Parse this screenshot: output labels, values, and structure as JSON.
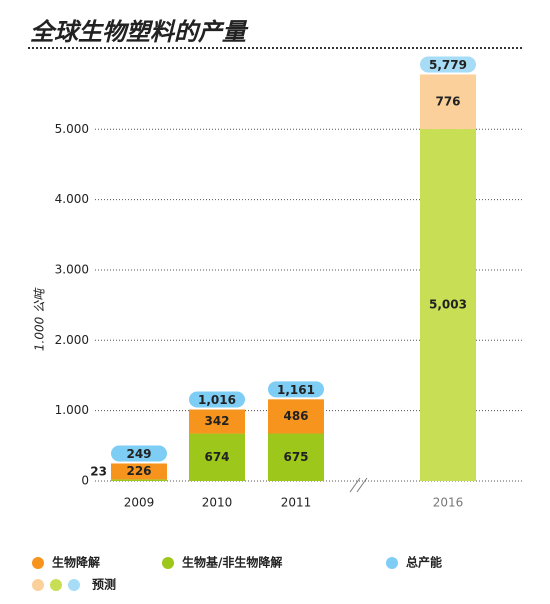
{
  "chart_data": {
    "type": "stacked_bar",
    "title": "全球生物塑料的产量",
    "y_label": "1.000 公吨",
    "categories": [
      "2009",
      "2010",
      "2011",
      "2016"
    ],
    "category_colors": [
      "#222222",
      "#222222",
      "#222222",
      "#777777"
    ],
    "ylim": [
      0,
      5800
    ],
    "yticks": [
      0,
      {
        "value": 1000,
        "label": "1.000"
      },
      {
        "value": 2000,
        "label": "2.000"
      },
      {
        "value": 3000,
        "label": "3.000"
      },
      {
        "value": 4000,
        "label": "4.000"
      },
      {
        "value": 5000,
        "label": "5.000"
      }
    ],
    "grid": true,
    "series": [
      {
        "name": "生物基/非生物降解",
        "color": "#9dc81b",
        "colors": [
          "#9dc81b",
          "#9dc81b",
          "#9dc81b",
          "#c8df55"
        ],
        "values": [
          23,
          674,
          675,
          5003
        ],
        "value_labels": [
          "23",
          "674",
          "675",
          "5,003"
        ]
      },
      {
        "name": "生物降解",
        "color": "#f7941d",
        "colors": [
          "#f7941d",
          "#f7941d",
          "#f7941d",
          "#fbd09a"
        ],
        "values": [
          226,
          342,
          486,
          776
        ]
      }
    ],
    "totals": {
      "name": "总产能",
      "color": "#7ecdf4",
      "colors": [
        "#7ecdf4",
        "#7ecdf4",
        "#7ecdf4",
        "#a6dcf6"
      ],
      "values": [
        249,
        1016,
        1161,
        5779
      ],
      "value_labels": [
        "249",
        "1,016",
        "1,161",
        "5,779"
      ]
    },
    "forecast": {
      "name": "预测",
      "colors": [
        "#fbd09a",
        "#c8df55",
        "#a6dcf6"
      ]
    }
  }
}
